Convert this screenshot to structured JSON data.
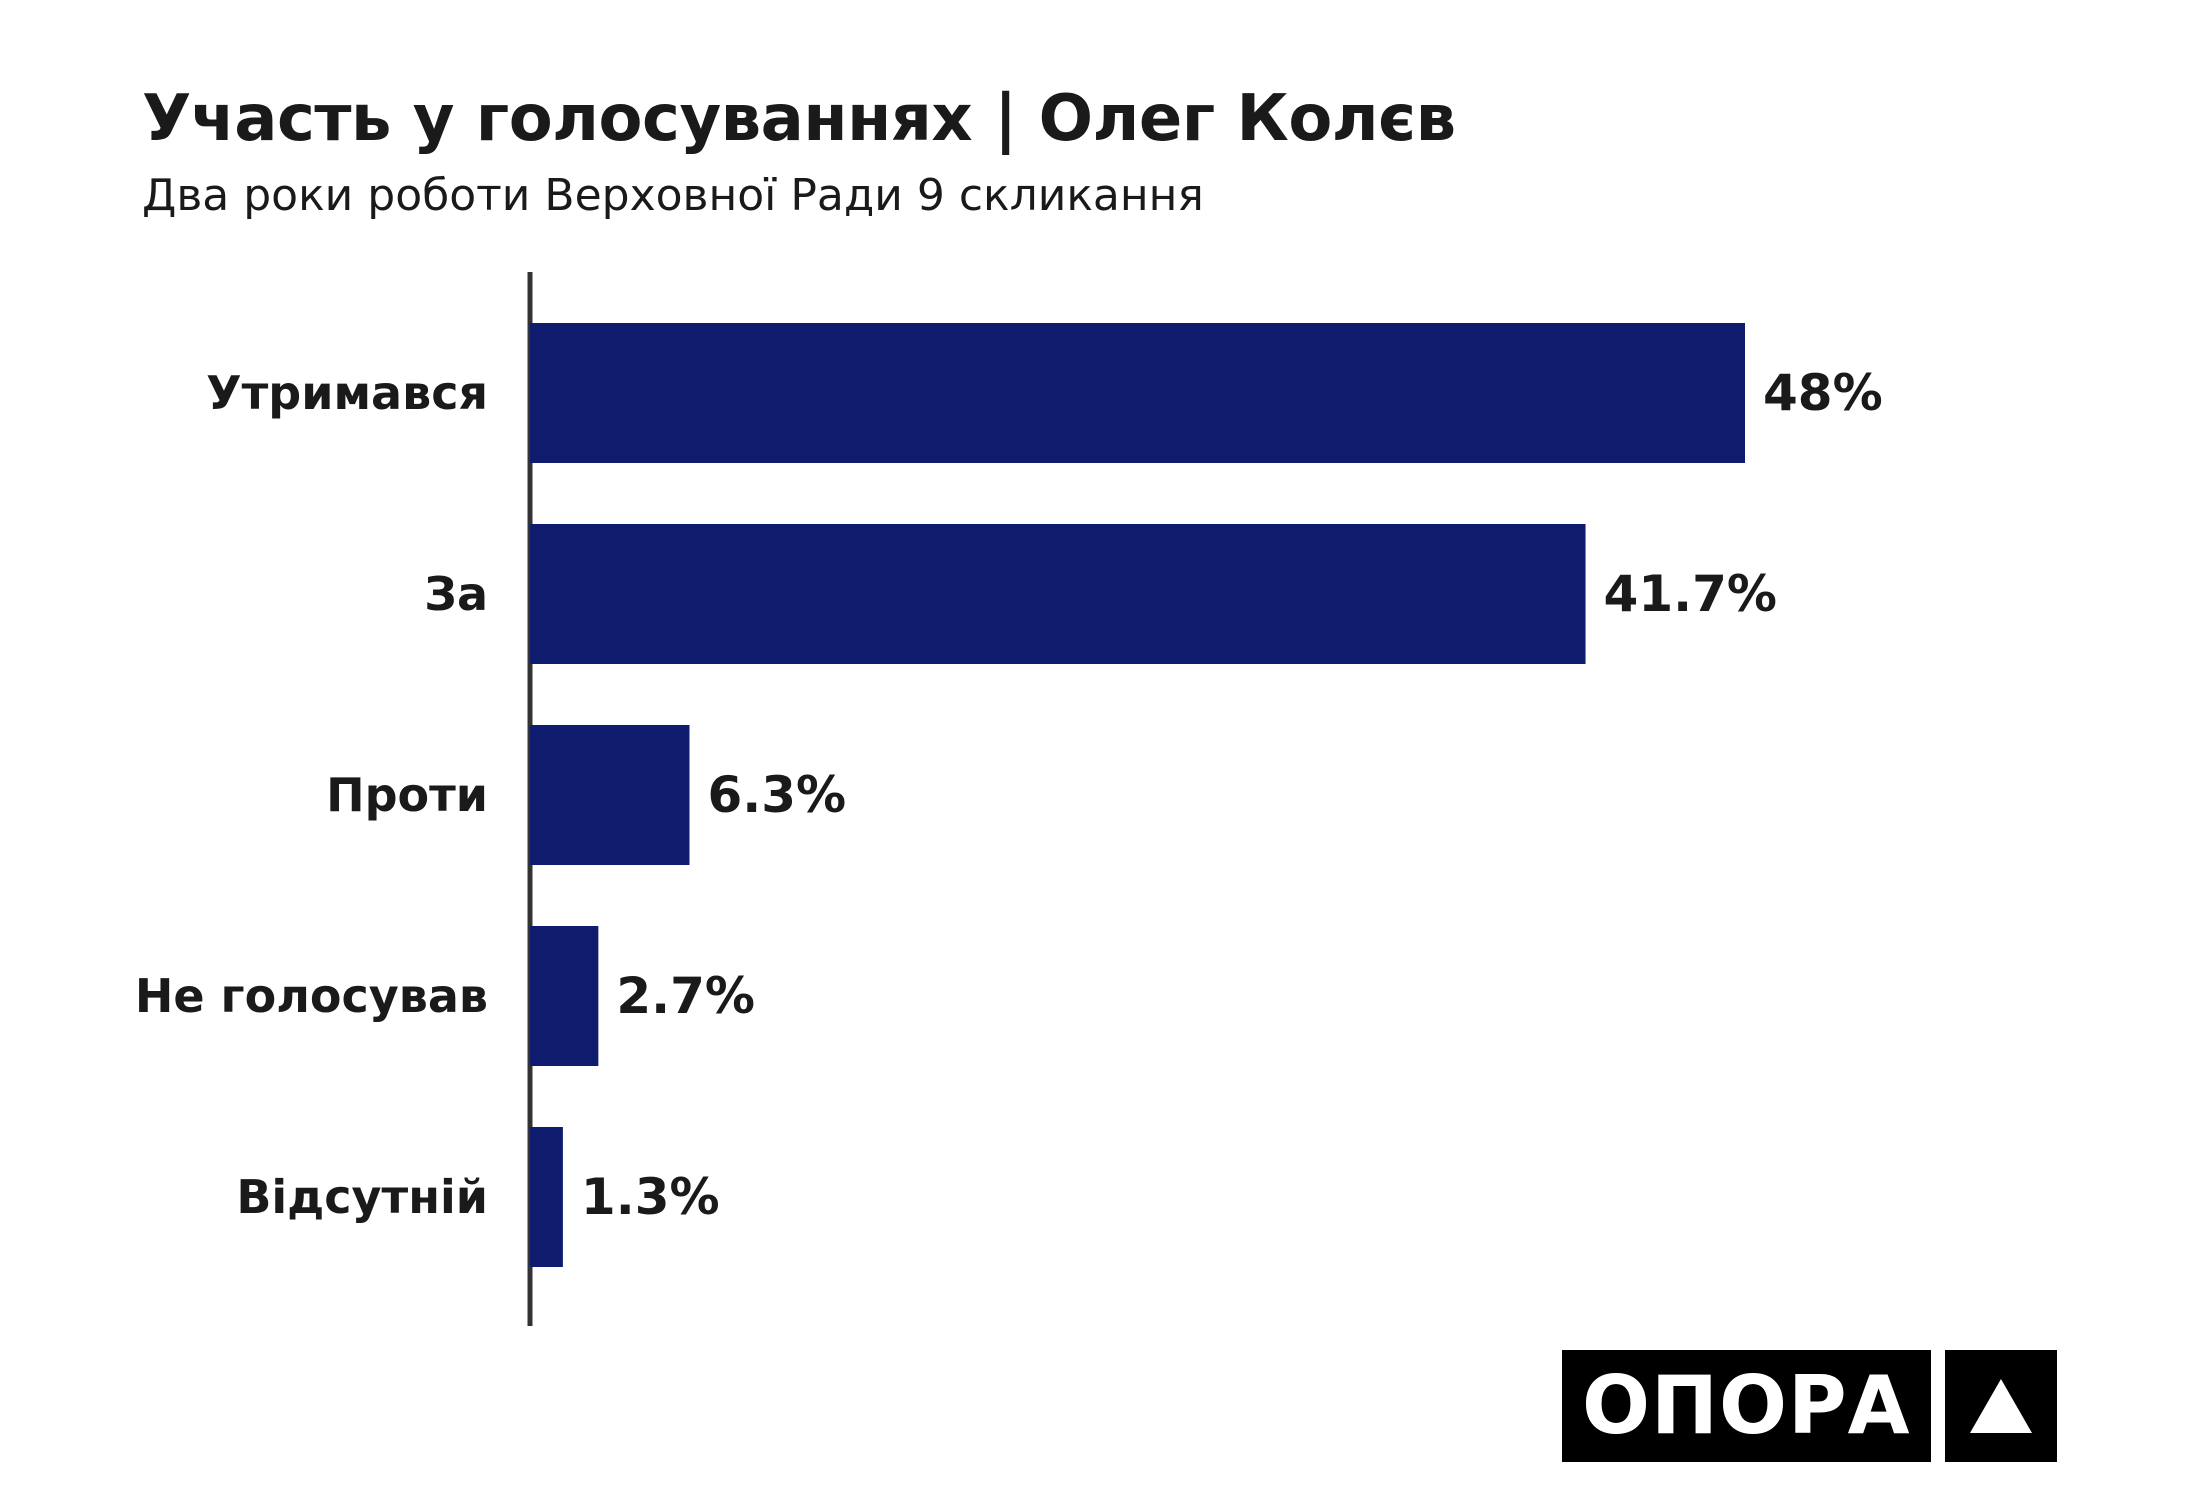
{
  "title": "Участь у голосуваннях | Олег Колєв",
  "subtitle": "Два роки роботи Верховної Ради 9 скликання",
  "logo": {
    "text": "ОПОРА"
  },
  "colors": {
    "bar": "#0f1c6e",
    "axis": "#333333",
    "text": "#1a1a1a"
  },
  "chart_data": {
    "type": "bar",
    "orientation": "horizontal",
    "categories": [
      "Утримався",
      "За",
      "Проти",
      "Не голосував",
      "Відсутній"
    ],
    "values": [
      48,
      41.7,
      6.3,
      2.7,
      1.3
    ],
    "value_labels": [
      "48%",
      "41.7%",
      "6.3%",
      "2.7%",
      "1.3%"
    ],
    "unit": "%",
    "xlim": [
      0,
      48
    ],
    "grid": false,
    "legend": "none"
  }
}
